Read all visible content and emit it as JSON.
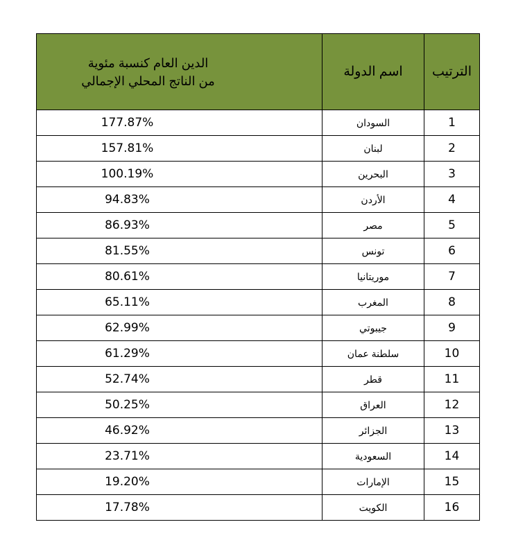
{
  "table": {
    "headers": {
      "rank": "الترتيب",
      "country": "اسم الدولة",
      "debt": [
        "الدين العام كنسبة مئوية",
        "من الناتج المحلي الإجمالي"
      ]
    },
    "rows": [
      [
        "1",
        "السودان",
        "177.87%"
      ],
      [
        "2",
        "لبنان",
        "157.81%"
      ],
      [
        "3",
        "البحرين",
        "100.19%"
      ],
      [
        "4",
        "الأردن",
        "94.83%"
      ],
      [
        "5",
        "مصر",
        "86.93%"
      ],
      [
        "6",
        "تونس",
        "81.55%"
      ],
      [
        "7",
        "موريتانيا",
        "80.61%"
      ],
      [
        "8",
        "المغرب",
        "65.11%"
      ],
      [
        "9",
        "جيبوتي",
        "62.99%"
      ],
      [
        "10",
        "سلطنة عمان",
        "61.29%"
      ],
      [
        "11",
        "قطر",
        "52.74%"
      ],
      [
        "12",
        "العراق",
        "50.25%"
      ],
      [
        "13",
        "الجزائر",
        "46.92%"
      ],
      [
        "14",
        "السعودية",
        "23.71%"
      ],
      [
        "15",
        "الإمارات",
        "19.20%"
      ],
      [
        "16",
        "الكويت",
        "17.78%"
      ]
    ]
  }
}
